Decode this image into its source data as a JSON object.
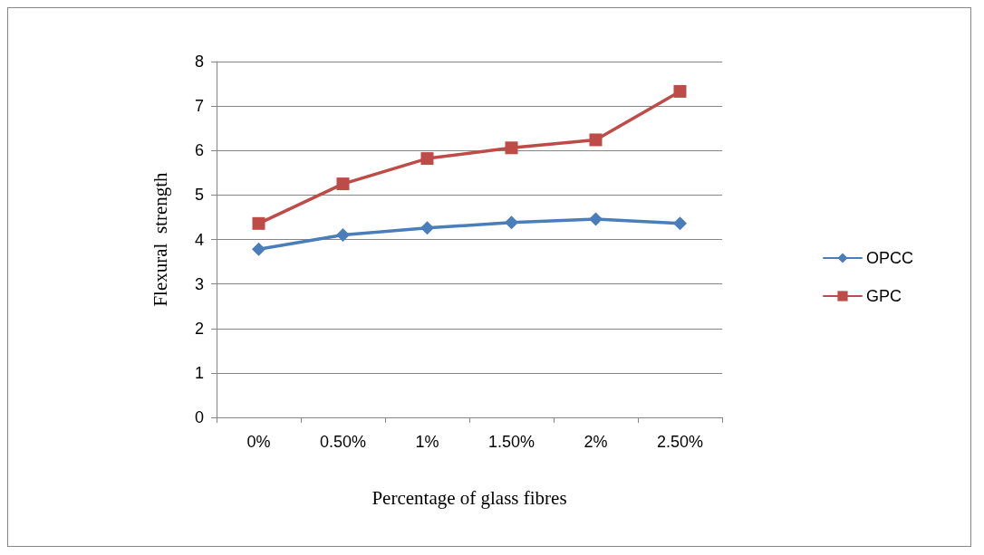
{
  "chart_data": {
    "type": "line",
    "xlabel": "Percentage of glass fibres",
    "ylabel": "Flexural  strength",
    "categories": [
      "0%",
      "0.50%",
      "1%",
      "1.50%",
      "2%",
      "2.50%"
    ],
    "series": [
      {
        "name": "OPCC",
        "color": "#4a7ebb",
        "marker": "diamond",
        "values": [
          3.78,
          4.1,
          4.26,
          4.38,
          4.46,
          4.36
        ]
      },
      {
        "name": "GPC",
        "color": "#be4b48",
        "marker": "square",
        "values": [
          4.36,
          5.25,
          5.82,
          6.06,
          6.24,
          7.33
        ]
      }
    ],
    "ylim": [
      0,
      8
    ],
    "yticks": [
      0,
      1,
      2,
      3,
      4,
      5,
      6,
      7,
      8
    ],
    "grid": "y",
    "legend": "right",
    "line_style": "solid"
  }
}
